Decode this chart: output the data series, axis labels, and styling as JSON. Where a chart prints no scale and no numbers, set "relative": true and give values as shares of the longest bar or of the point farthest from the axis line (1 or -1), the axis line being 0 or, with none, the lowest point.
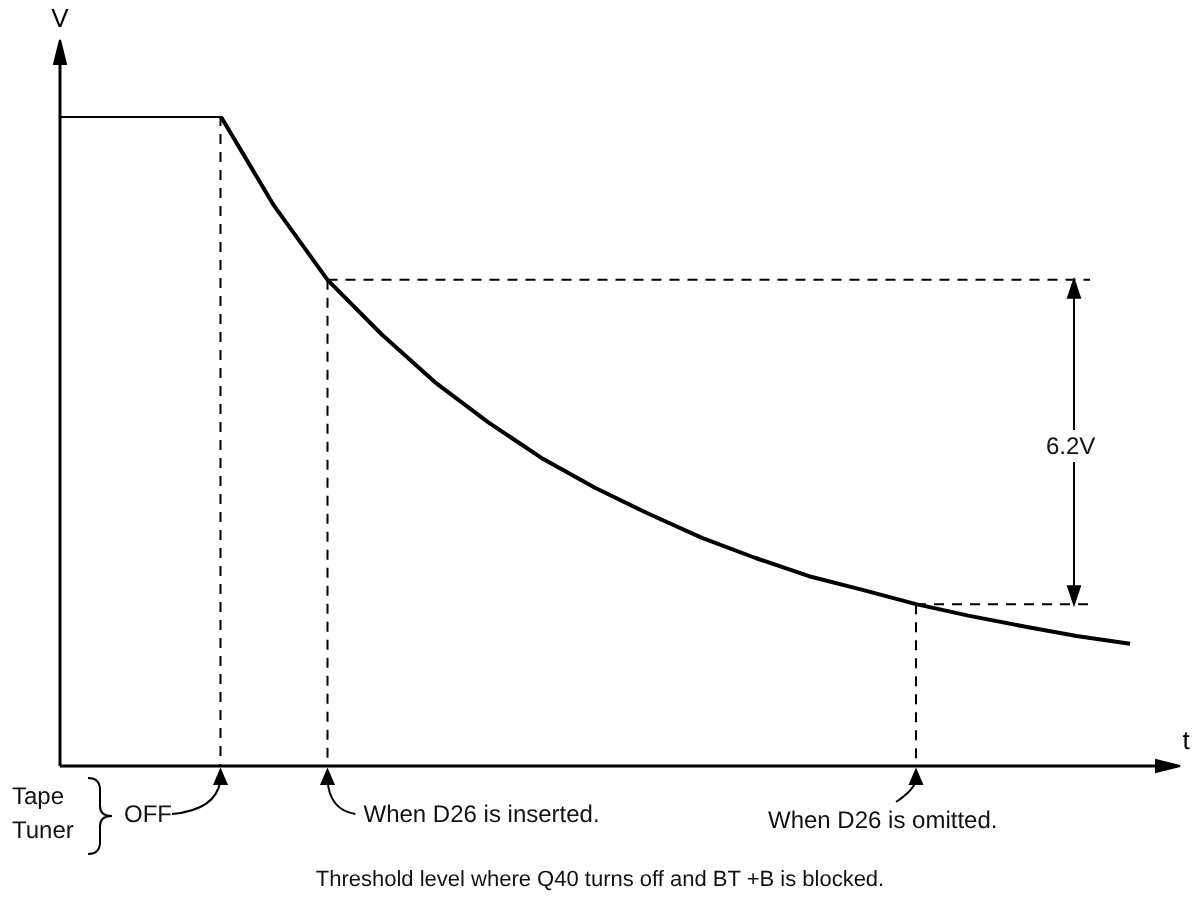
{
  "chart_data": {
    "type": "line",
    "relative": true,
    "xlabel": "t",
    "ylabel": "V",
    "categories": [
      null,
      null,
      null,
      null,
      null,
      null,
      null,
      null,
      null,
      null,
      null,
      null,
      null,
      null,
      null,
      null,
      null,
      null,
      null,
      null,
      null
    ],
    "series": [
      {
        "color": "#000000",
        "values": [
          1,
          1,
          1,
          1,
          0.862,
          0.748,
          0.665,
          0.591,
          0.529,
          0.474,
          0.428,
          0.388,
          0.351,
          0.32,
          0.292,
          0.271,
          0.249,
          0.231,
          0.215,
          0.2,
          0.188
        ]
      }
    ],
    "ref_lines": [
      {
        "axis": "y",
        "value": 0.748,
        "line_style": "dashed"
      },
      {
        "axis": "y",
        "value": 0.249,
        "line_style": "dashed"
      }
    ],
    "annotations": [
      "Tape",
      "Tuner",
      "OFF",
      "When D26 is inserted.",
      "When D26 is omitted.",
      "6.2V",
      "Threshold level where Q40 turns off and BT +B is blocked."
    ],
    "legend": false,
    "marker": "none",
    "line_style": "solid",
    "tick_labels": false
  }
}
